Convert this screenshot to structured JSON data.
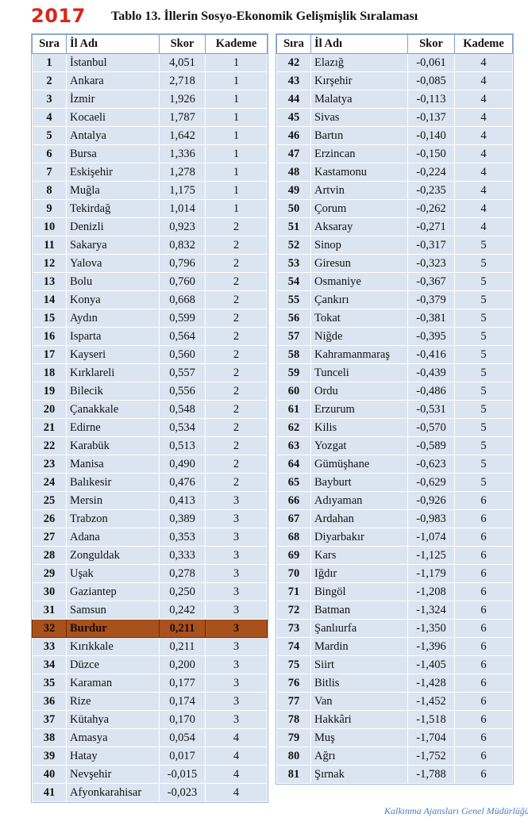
{
  "header": {
    "year": "2017",
    "title": "Tablo 13. İllerin Sosyo-Ekonomik Gelişmişlik Sıralaması"
  },
  "tables": {
    "left": {
      "columns": [
        "Sıra",
        "İl Adı",
        "Skor",
        "Kademe"
      ],
      "rows": [
        [
          "1",
          "İstanbul",
          "4,051",
          "1"
        ],
        [
          "2",
          "Ankara",
          "2,718",
          "1"
        ],
        [
          "3",
          "İzmir",
          "1,926",
          "1"
        ],
        [
          "4",
          "Kocaeli",
          "1,787",
          "1"
        ],
        [
          "5",
          "Antalya",
          "1,642",
          "1"
        ],
        [
          "6",
          "Bursa",
          "1,336",
          "1"
        ],
        [
          "7",
          "Eskişehir",
          "1,278",
          "1"
        ],
        [
          "8",
          "Muğla",
          "1,175",
          "1"
        ],
        [
          "9",
          "Tekirdağ",
          "1,014",
          "1"
        ],
        [
          "10",
          "Denizli",
          "0,923",
          "2"
        ],
        [
          "11",
          "Sakarya",
          "0,832",
          "2"
        ],
        [
          "12",
          "Yalova",
          "0,796",
          "2"
        ],
        [
          "13",
          "Bolu",
          "0,760",
          "2"
        ],
        [
          "14",
          "Konya",
          "0,668",
          "2"
        ],
        [
          "15",
          "Aydın",
          "0,599",
          "2"
        ],
        [
          "16",
          "Isparta",
          "0,564",
          "2"
        ],
        [
          "17",
          "Kayseri",
          "0,560",
          "2"
        ],
        [
          "18",
          "Kırklareli",
          "0,557",
          "2"
        ],
        [
          "19",
          "Bilecik",
          "0,556",
          "2"
        ],
        [
          "20",
          "Çanakkale",
          "0,548",
          "2"
        ],
        [
          "21",
          "Edirne",
          "0,534",
          "2"
        ],
        [
          "22",
          "Karabük",
          "0,513",
          "2"
        ],
        [
          "23",
          "Manisa",
          "0,490",
          "2"
        ],
        [
          "24",
          "Balıkesir",
          "0,476",
          "2"
        ],
        [
          "25",
          "Mersin",
          "0,413",
          "3"
        ],
        [
          "26",
          "Trabzon",
          "0,389",
          "3"
        ],
        [
          "27",
          "Adana",
          "0,353",
          "3"
        ],
        [
          "28",
          "Zonguldak",
          "0,333",
          "3"
        ],
        [
          "29",
          "Uşak",
          "0,278",
          "3"
        ],
        [
          "30",
          "Gaziantep",
          "0,250",
          "3"
        ],
        [
          "31",
          "Samsun",
          "0,242",
          "3"
        ],
        [
          "32",
          "Burdur",
          "0,211",
          "3"
        ],
        [
          "33",
          "Kırıkkale",
          "0,211",
          "3"
        ],
        [
          "34",
          "Düzce",
          "0,200",
          "3"
        ],
        [
          "35",
          "Karaman",
          "0,177",
          "3"
        ],
        [
          "36",
          "Rize",
          "0,174",
          "3"
        ],
        [
          "37",
          "Kütahya",
          "0,170",
          "3"
        ],
        [
          "38",
          "Amasya",
          "0,054",
          "4"
        ],
        [
          "39",
          "Hatay",
          "0,017",
          "4"
        ],
        [
          "40",
          "Nevşehir",
          "-0,015",
          "4"
        ],
        [
          "41",
          "Afyonkarahisar",
          "-0,023",
          "4"
        ]
      ]
    },
    "right": {
      "columns": [
        "Sıra",
        "İl Adı",
        "Skor",
        "Kademe"
      ],
      "rows": [
        [
          "42",
          "Elazığ",
          "-0,061",
          "4"
        ],
        [
          "43",
          "Kırşehir",
          "-0,085",
          "4"
        ],
        [
          "44",
          "Malatya",
          "-0,113",
          "4"
        ],
        [
          "45",
          "Sivas",
          "-0,137",
          "4"
        ],
        [
          "46",
          "Bartın",
          "-0,140",
          "4"
        ],
        [
          "47",
          "Erzincan",
          "-0,150",
          "4"
        ],
        [
          "48",
          "Kastamonu",
          "-0,224",
          "4"
        ],
        [
          "49",
          "Artvin",
          "-0,235",
          "4"
        ],
        [
          "50",
          "Çorum",
          "-0,262",
          "4"
        ],
        [
          "51",
          "Aksaray",
          "-0,271",
          "4"
        ],
        [
          "52",
          "Sinop",
          "-0,317",
          "5"
        ],
        [
          "53",
          "Giresun",
          "-0,323",
          "5"
        ],
        [
          "54",
          "Osmaniye",
          "-0,367",
          "5"
        ],
        [
          "55",
          "Çankırı",
          "-0,379",
          "5"
        ],
        [
          "56",
          "Tokat",
          "-0,381",
          "5"
        ],
        [
          "57",
          "Niğde",
          "-0,395",
          "5"
        ],
        [
          "58",
          "Kahramanmaraş",
          "-0,416",
          "5"
        ],
        [
          "59",
          "Tunceli",
          "-0,439",
          "5"
        ],
        [
          "60",
          "Ordu",
          "-0,486",
          "5"
        ],
        [
          "61",
          "Erzurum",
          "-0,531",
          "5"
        ],
        [
          "62",
          "Kilis",
          "-0,570",
          "5"
        ],
        [
          "63",
          "Yozgat",
          "-0,589",
          "5"
        ],
        [
          "64",
          "Gümüşhane",
          "-0,623",
          "5"
        ],
        [
          "65",
          "Bayburt",
          "-0,629",
          "5"
        ],
        [
          "66",
          "Adıyaman",
          "-0,926",
          "6"
        ],
        [
          "67",
          "Ardahan",
          "-0,983",
          "6"
        ],
        [
          "68",
          "Diyarbakır",
          "-1,074",
          "6"
        ],
        [
          "69",
          "Kars",
          "-1,125",
          "6"
        ],
        [
          "70",
          "Iğdır",
          "-1,179",
          "6"
        ],
        [
          "71",
          "Bingöl",
          "-1,208",
          "6"
        ],
        [
          "72",
          "Batman",
          "-1,324",
          "6"
        ],
        [
          "73",
          "Şanlıurfa",
          "-1,350",
          "6"
        ],
        [
          "74",
          "Mardin",
          "-1,396",
          "6"
        ],
        [
          "75",
          "Siirt",
          "-1,405",
          "6"
        ],
        [
          "76",
          "Bitlis",
          "-1,428",
          "6"
        ],
        [
          "77",
          "Van",
          "-1,452",
          "6"
        ],
        [
          "78",
          "Hakkâri",
          "-1,518",
          "6"
        ],
        [
          "79",
          "Muş",
          "-1,704",
          "6"
        ],
        [
          "80",
          "Ağrı",
          "-1,752",
          "6"
        ],
        [
          "81",
          "Şırnak",
          "-1,788",
          "6"
        ]
      ]
    }
  },
  "footer": "Kalkınma Ajansları Genel Müdürlüğü"
}
